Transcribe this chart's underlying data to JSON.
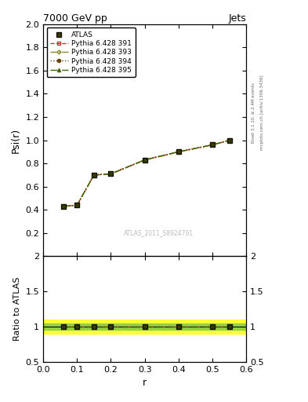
{
  "title": "7000 GeV pp",
  "title_right": "Jets",
  "ylabel_main": "Psi(r)",
  "ylabel_ratio": "Ratio to ATLAS",
  "xlabel": "r",
  "watermark": "ATLAS_2011_S8924791",
  "right_label": "mcplots.cern.ch [arXiv:1306.3436]",
  "right_label2": "Rivet 3.1.10, ≥ 2.4M events",
  "r_values": [
    0.06,
    0.1,
    0.15,
    0.2,
    0.3,
    0.4,
    0.5,
    0.55
  ],
  "atlas_y": [
    0.43,
    0.44,
    0.7,
    0.71,
    0.83,
    0.9,
    0.96,
    1.0
  ],
  "atlas_yerr": [
    0.01,
    0.01,
    0.01,
    0.01,
    0.01,
    0.01,
    0.01,
    0.01
  ],
  "pythia_391_y": [
    0.43,
    0.44,
    0.7,
    0.71,
    0.83,
    0.9,
    0.96,
    1.0
  ],
  "pythia_393_y": [
    0.43,
    0.44,
    0.7,
    0.71,
    0.83,
    0.9,
    0.96,
    1.0
  ],
  "pythia_394_y": [
    0.43,
    0.44,
    0.7,
    0.71,
    0.83,
    0.9,
    0.96,
    1.0
  ],
  "pythia_395_y": [
    0.43,
    0.44,
    0.7,
    0.71,
    0.83,
    0.9,
    0.96,
    1.0
  ],
  "color_atlas": "#3a3a00",
  "color_391": "#cc3333",
  "color_393": "#888822",
  "color_394": "#664400",
  "color_395": "#446600",
  "ratio_band_yellow": [
    0.9,
    1.1
  ],
  "ratio_band_green": [
    0.95,
    1.05
  ],
  "main_ylim": [
    0.0,
    2.0
  ],
  "main_yticks": [
    0.2,
    0.4,
    0.6,
    0.8,
    1.0,
    1.2,
    1.4,
    1.6,
    1.8,
    2.0
  ],
  "ratio_ylim": [
    0.5,
    2.0
  ],
  "ratio_yticks": [
    0.5,
    1.0,
    1.5,
    2.0
  ],
  "ratio_yticklabels": [
    "0.5",
    "1",
    "1.5",
    "2"
  ],
  "xlim": [
    0.0,
    0.6
  ],
  "legend_entries": [
    "ATLAS",
    "Pythia 6.428 391",
    "Pythia 6.428 393",
    "Pythia 6.428 394",
    "Pythia 6.428 395"
  ]
}
